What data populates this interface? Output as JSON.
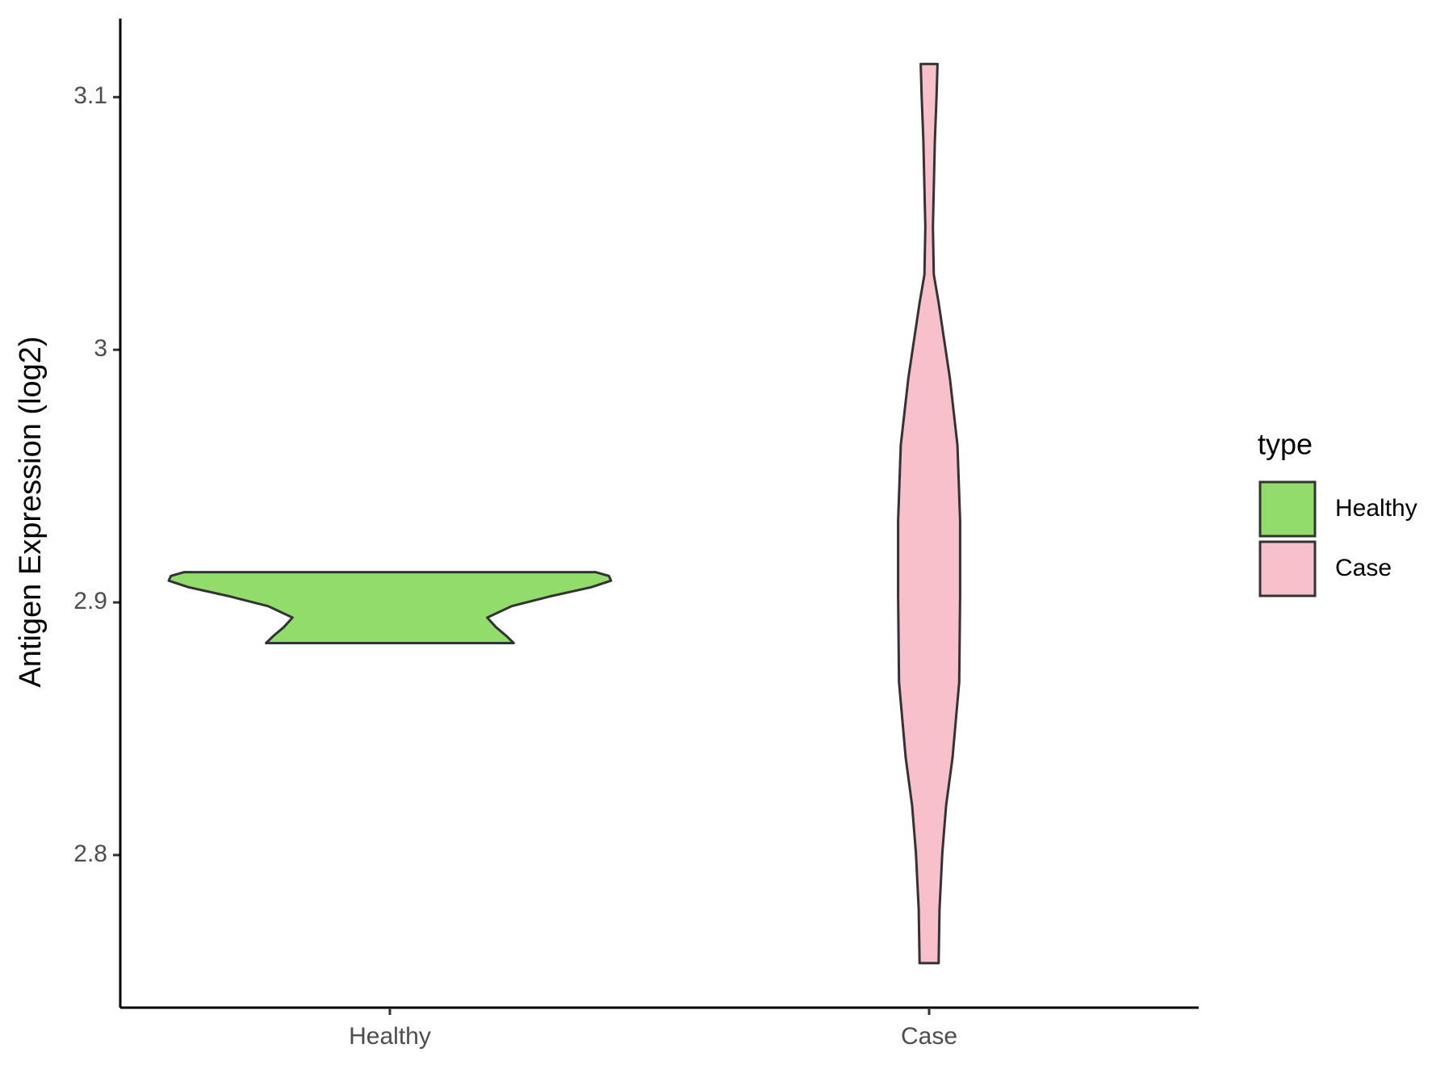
{
  "chart_data": {
    "type": "violin",
    "y_label": "Antigen Expression (log2)",
    "categories": [
      "Healthy",
      "Case"
    ],
    "legend_title": "type",
    "legend_position": "right",
    "series": [
      {
        "name": "Healthy",
        "color": "#91dc6a",
        "y": [
          2.912,
          2.9105,
          2.9086,
          2.906,
          2.9023,
          2.8985,
          2.894,
          2.8902,
          2.8865,
          2.8839
        ],
        "width": [
          0.93,
          0.99,
          1,
          0.91,
          0.72,
          0.55,
          0.44,
          0.48,
          0.53,
          0.56
        ]
      },
      {
        "name": "Case",
        "color": "#f7c0cb",
        "y": [
          3.1131,
          3.1011,
          3.0824,
          3.0486,
          3.0298,
          3.0186,
          2.9886,
          2.9623,
          2.9323,
          2.9023,
          2.8685,
          2.8385,
          2.8197,
          2.8011,
          2.7786,
          2.7572
        ],
        "width": [
          0.038,
          0.034,
          0.026,
          0.017,
          0.021,
          0.043,
          0.094,
          0.128,
          0.14,
          0.14,
          0.136,
          0.106,
          0.077,
          0.06,
          0.047,
          0.043
        ]
      }
    ],
    "ylim": [
      2.7396,
      3.1311
    ],
    "yticks": [
      2.8,
      2.9,
      3.0,
      3.1
    ]
  }
}
